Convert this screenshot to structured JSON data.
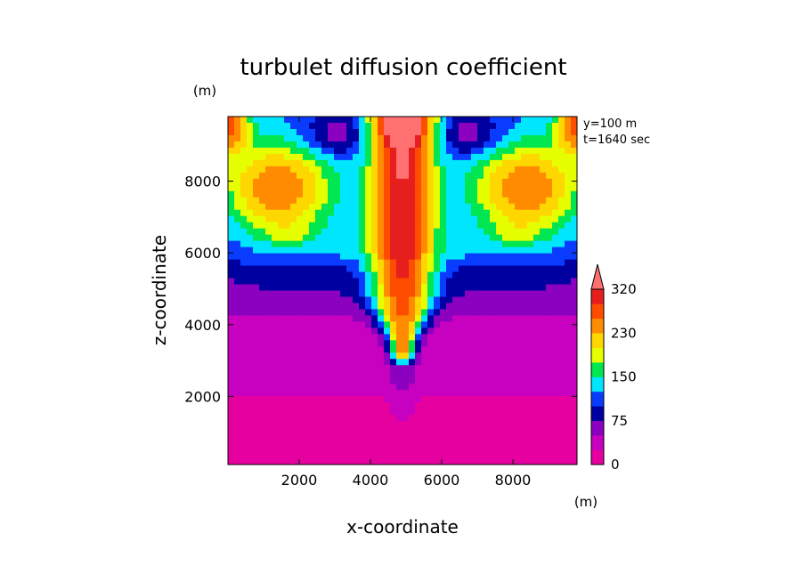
{
  "chart_data": {
    "type": "heatmap",
    "title": "turbulet diffusion coefficient",
    "xlabel": "x-coordinate",
    "ylabel": "z-coordinate",
    "xunit": "(m)",
    "yunit": "(m)",
    "xlim": [
      0,
      9800
    ],
    "ylim": [
      100,
      9800
    ],
    "xticks": [
      2000,
      4000,
      6000,
      8000
    ],
    "yticks": [
      2000,
      4000,
      6000,
      8000
    ],
    "annotations": [
      "y=100 m",
      "t=1640 sec"
    ],
    "colorbar": {
      "levels": [
        0,
        25,
        50,
        75,
        100,
        125,
        150,
        175,
        200,
        230,
        260,
        290,
        320
      ],
      "tick_labels": [
        "0",
        "75",
        "150",
        "230",
        "320"
      ],
      "colors": [
        "#e600a0",
        "#c800c0",
        "#8c00c0",
        "#0000a0",
        "#0a3cff",
        "#00e6ff",
        "#00e650",
        "#e6ff00",
        "#ffd700",
        "#ff8c00",
        "#ff4d00",
        "#e61e1e",
        "#ff7070"
      ],
      "extend": "max"
    },
    "field_description": "central plume around x=5000 with values above 200 reaching top; lateral lobes 150-230 between z=6000 and 9800; values below 50 under z=4500"
  }
}
